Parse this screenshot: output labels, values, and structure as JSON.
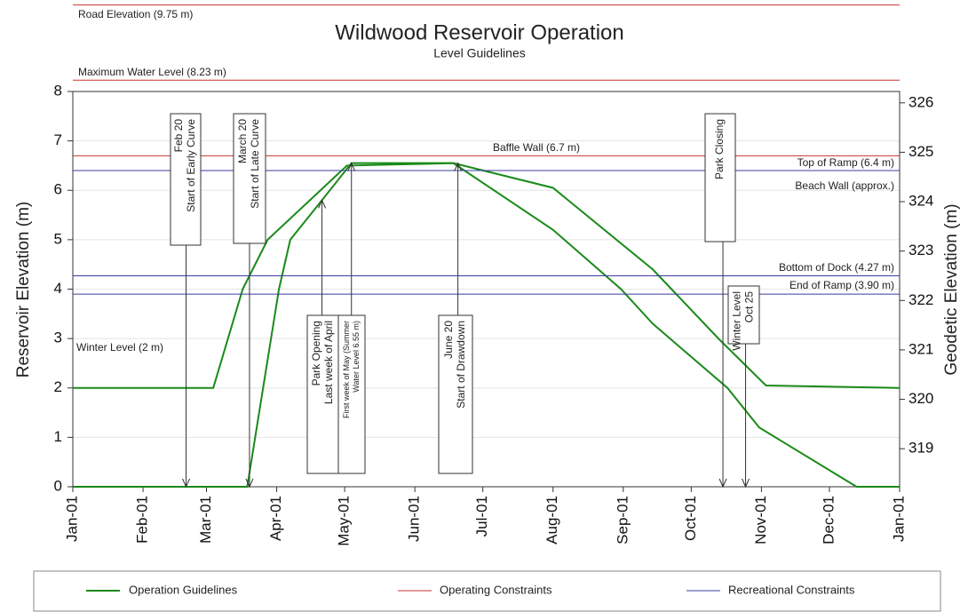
{
  "chart_data": {
    "type": "line",
    "title": "Wildwood Reservoir Operation",
    "subtitle": "Level Guidelines",
    "ylabel": "Reservoir Elevation (m)",
    "y2label": "Geodetic Elevation (m)",
    "xlim": [
      0,
      365
    ],
    "xticks": [
      {
        "value": 0,
        "label": "Jan-01"
      },
      {
        "value": 31,
        "label": "Feb-01"
      },
      {
        "value": 59,
        "label": "Mar-01"
      },
      {
        "value": 90,
        "label": "Apr-01"
      },
      {
        "value": 120,
        "label": "May-01"
      },
      {
        "value": 151,
        "label": "Jun-01"
      },
      {
        "value": 181,
        "label": "Jul-01"
      },
      {
        "value": 212,
        "label": "Aug-01"
      },
      {
        "value": 243,
        "label": "Sep-01"
      },
      {
        "value": 273,
        "label": "Oct-01"
      },
      {
        "value": 304,
        "label": "Nov-01"
      },
      {
        "value": 334,
        "label": "Dec-01"
      },
      {
        "value": 365,
        "label": "Jan-01"
      }
    ],
    "ylim": [
      0,
      8
    ],
    "yticks": [
      0,
      1,
      2,
      3,
      4,
      5,
      6,
      7,
      8
    ],
    "y2lim": [
      318.23,
      326.23
    ],
    "y2ticks": [
      319,
      320,
      321,
      322,
      323,
      324,
      325,
      326
    ],
    "grid": true,
    "series": [
      {
        "name": "Operation Guidelines",
        "color": "#1a8a1a",
        "lines": [
          {
            "x": [
              0,
              62,
              75,
              86,
              121,
              168,
              212,
              256,
              285,
              306,
              365
            ],
            "values": [
              2,
              2,
              4,
              5,
              6.5,
              6.55,
              6.05,
              4.4,
              3,
              2.05,
              2
            ]
          },
          {
            "x": [
              0,
              77,
              91,
              96,
              110,
              123,
              168,
              212,
              242,
              256,
              289,
              303,
              346,
              365
            ],
            "values": [
              0,
              0,
              4,
              5,
              5.8,
              6.55,
              6.55,
              5.2,
              4,
              3.3,
              2,
              1.2,
              0,
              0
            ]
          }
        ]
      },
      {
        "name": "Operating Constraints",
        "color": "#c83232",
        "levels": [
          {
            "label": "Road Elevation (9.75 m)",
            "value": 9.75
          },
          {
            "label": "Maximum Water Level (8.23 m)",
            "value": 8.23
          },
          {
            "label": "Baffle Wall (6.7 m)",
            "value": 6.7
          }
        ]
      },
      {
        "name": "Recreational Constraints",
        "color": "#3c3ca0",
        "levels": [
          {
            "label": "Top of Ramp (6.4 m)",
            "value": 6.4
          },
          {
            "label": "Bottom  of Dock (4.27 m)",
            "value": 4.27
          },
          {
            "label": "End of Ramp (3.90 m)",
            "value": 3.9
          }
        ]
      }
    ],
    "notes": [
      "Winter Level (2 m)",
      "Beach Wall (approx.)"
    ],
    "annotations": [
      {
        "lines": [
          "Feb 20",
          "Start of Early Curve"
        ],
        "x": 50,
        "y": 0
      },
      {
        "lines": [
          "March 20",
          "Start of Late Curve"
        ],
        "x": 78,
        "y": 0
      },
      {
        "lines": [
          "Park Opening",
          "Last week of April"
        ],
        "x": 110,
        "y": 5.8
      },
      {
        "lines": [
          "First week of May (Summer",
          "Water Level 6.55 m)"
        ],
        "x": 123,
        "y": 6.55
      },
      {
        "lines": [
          "June 20",
          "Start of Drawdown"
        ],
        "x": 170,
        "y": 6.55
      },
      {
        "lines": [
          "Park Closing"
        ],
        "x": 287,
        "y": 0
      },
      {
        "lines": [
          "Winter Level",
          "Oct 25"
        ],
        "x": 297,
        "y": 0
      }
    ]
  }
}
